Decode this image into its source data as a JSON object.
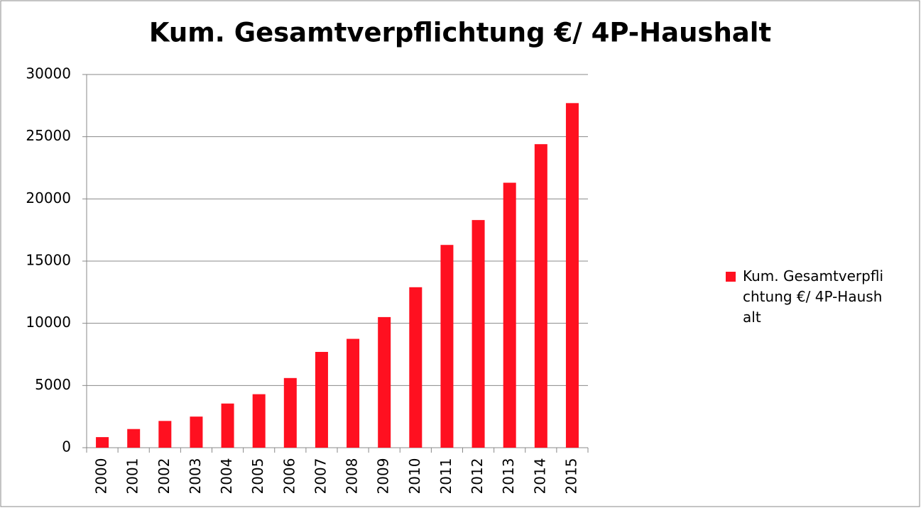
{
  "chart_data": {
    "type": "bar",
    "title": "Kum. Gesamtverpflichtung €/ 4P-Haushalt",
    "categories": [
      "2000",
      "2001",
      "2002",
      "2003",
      "2004",
      "2005",
      "2006",
      "2007",
      "2008",
      "2009",
      "2010",
      "2011",
      "2012",
      "2013",
      "2014",
      "2015"
    ],
    "series": [
      {
        "name": "Kum. Gesamtverpflichtung €/ 4P-Haushalt",
        "color": "#ff1020",
        "values": [
          850,
          1500,
          2150,
          2500,
          3550,
          4300,
          5600,
          7700,
          8750,
          10500,
          12900,
          16300,
          18300,
          21300,
          24400,
          27700
        ]
      }
    ],
    "ylim": [
      0,
      30000
    ],
    "yticks": [
      0,
      5000,
      10000,
      15000,
      20000,
      25000,
      30000
    ],
    "grid": true,
    "legend": "right"
  }
}
